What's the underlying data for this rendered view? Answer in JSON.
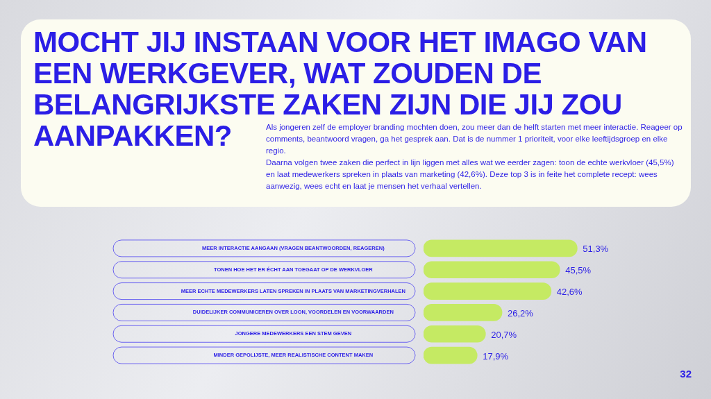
{
  "chart_data": {
    "type": "bar",
    "orientation": "horizontal",
    "title": "MOCHT JIJ INSTAAN VOOR HET IMAGO VAN EEN WERKGEVER, WAT ZOUDEN DE BELANGRIJKSTE ZAKEN ZIJN DIE JIJ ZOU AANPAKKEN?",
    "subtitle": "Als jongeren zelf de employer branding mochten doen, zou meer dan de helft starten met meer interactie. Reageer op comments, beantwoord vragen, ga het gesprek aan. Dat is de nummer 1 prioriteit, voor elke leeftijdsgroep en elke regio.\nDaarna volgen twee zaken die perfect in lijn liggen met alles wat we eerder zagen: toon de echte werkvloer (45,5%) en laat medewerkers spreken in plaats van marketing (42,6%). Deze top 3 is in feite het complete recept: wees aanwezig, wees echt en laat je mensen het verhaal vertellen.",
    "categories": [
      "MEER INTERACTIE AANGAAN (VRAGEN BEANTWOORDEN, REAGEREN)",
      "TONEN HOE HET ER ÉCHT AAN TOEGAAT OP DE WERKVLOER",
      "MEER ECHTE MEDEWERKERS LATEN SPREKEN IN PLAATS VAN MARKETINGVERHALEN",
      "DUIDELIJKER COMMUNICEREN OVER LOON, VOORDELEN EN VOORWAARDEN",
      "JONGERE MEDEWERKERS EEN STEM GEVEN",
      "MINDER GEPOLIJSTE, MEER REALISTISCHE CONTENT MAKEN"
    ],
    "values": [
      51.3,
      45.5,
      42.6,
      26.2,
      20.7,
      17.9
    ],
    "value_labels": [
      "51,3%",
      "45,5%",
      "42,6%",
      "26,2%",
      "20,7%",
      "17,9%"
    ],
    "color": "#c5ea63",
    "annotations": [
      "32"
    ]
  }
}
